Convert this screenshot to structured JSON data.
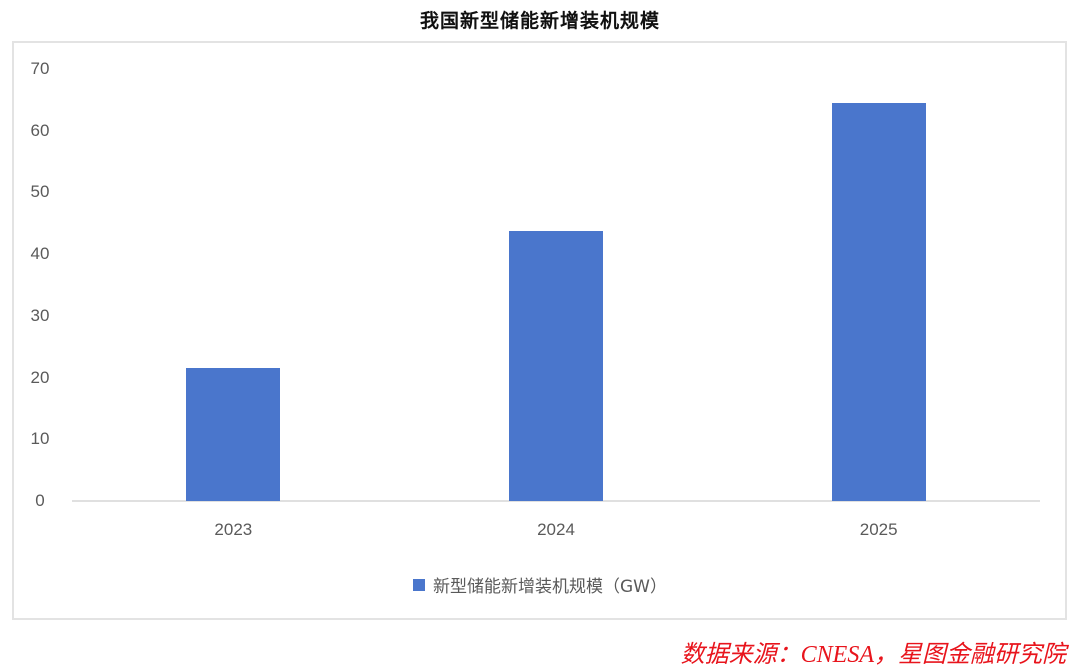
{
  "title": "我国新型储能新增装机规模",
  "source_note": "数据来源：CNESA，星图金融研究院",
  "legend": {
    "label": "新型储能新增装机规模（GW）",
    "color": "#4a76cc"
  },
  "y_ticks": [
    "0",
    "10",
    "20",
    "30",
    "40",
    "50",
    "60",
    "70"
  ],
  "chart_data": {
    "type": "bar",
    "title": "我国新型储能新增装机规模",
    "categories": [
      "2023",
      "2024",
      "2025"
    ],
    "series": [
      {
        "name": "新型储能新增装机规模（GW）",
        "values": [
          21.5,
          43.7,
          64.5
        ],
        "color": "#4a76cc"
      }
    ],
    "xlabel": "",
    "ylabel": "",
    "ylim": [
      0,
      70
    ],
    "yticks": [
      0,
      10,
      20,
      30,
      40,
      50,
      60,
      70
    ],
    "grid": false,
    "legend_position": "bottom"
  }
}
